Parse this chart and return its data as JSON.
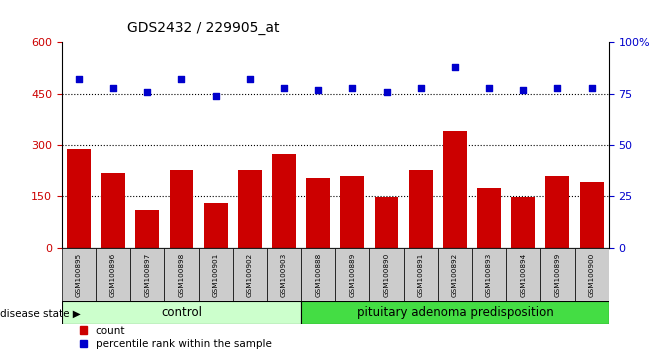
{
  "title": "GDS2432 / 229905_at",
  "samples": [
    "GSM100895",
    "GSM100896",
    "GSM100897",
    "GSM100898",
    "GSM100901",
    "GSM100902",
    "GSM100903",
    "GSM100888",
    "GSM100889",
    "GSM100890",
    "GSM100891",
    "GSM100892",
    "GSM100893",
    "GSM100894",
    "GSM100899",
    "GSM100900"
  ],
  "counts": [
    290,
    218,
    110,
    228,
    130,
    228,
    275,
    205,
    210,
    148,
    228,
    340,
    175,
    148,
    210,
    192
  ],
  "percentiles": [
    82,
    78,
    76,
    82,
    74,
    82,
    78,
    77,
    78,
    76,
    78,
    88,
    78,
    77,
    78,
    78
  ],
  "control_count": 7,
  "disease_count": 9,
  "control_label": "control",
  "disease_label": "pituitary adenoma predisposition",
  "bar_color": "#cc0000",
  "dot_color": "#0000cc",
  "left_ylim": [
    0,
    600
  ],
  "left_yticks": [
    0,
    150,
    300,
    450,
    600
  ],
  "right_ylim": [
    0,
    100
  ],
  "right_yticks": [
    0,
    25,
    50,
    75,
    100
  ],
  "right_yticklabels": [
    "0",
    "25",
    "50",
    "75",
    "100%"
  ],
  "hgrid_values": [
    150,
    300,
    450
  ],
  "control_bg": "#ccffcc",
  "disease_bg": "#44dd44",
  "xticklabel_bg": "#cccccc",
  "legend_count_label": "count",
  "legend_pct_label": "percentile rank within the sample",
  "disease_state_label": "disease state"
}
